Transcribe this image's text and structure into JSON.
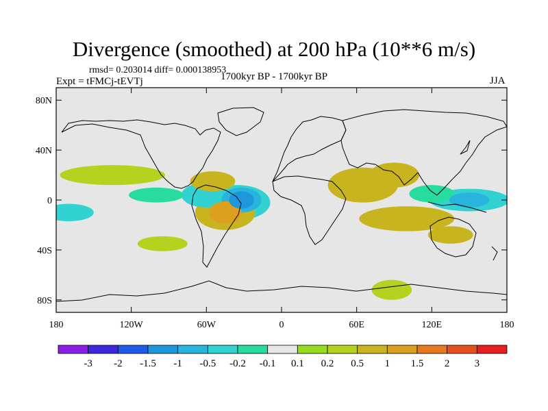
{
  "title": "Divergence (smoothed) at 200 hPa (10**6 m/s)",
  "stats_line": "rmsd= 0.203014 diff= 0.000138953",
  "experiment_label": "Expt = tFMCj-tEVTj",
  "period_label": "1700kyr BP - 1700kyr BP",
  "season_label": "JJA",
  "y_ticks": [
    {
      "label": "80N",
      "lat": 80
    },
    {
      "label": "40N",
      "lat": 40
    },
    {
      "label": "0",
      "lat": 0
    },
    {
      "label": "40S",
      "lat": -40
    },
    {
      "label": "80S",
      "lat": -80
    }
  ],
  "x_ticks": [
    {
      "label": "180",
      "lon": -180
    },
    {
      "label": "120W",
      "lon": -120
    },
    {
      "label": "60W",
      "lon": -60
    },
    {
      "label": "0",
      "lon": 0
    },
    {
      "label": "60E",
      "lon": 60
    },
    {
      "label": "120E",
      "lon": 120
    },
    {
      "label": "180",
      "lon": 180
    }
  ],
  "colorbar": {
    "colors": [
      "#8c1ee6",
      "#3c28dc",
      "#1e5ae6",
      "#1e96dc",
      "#28b4dc",
      "#32d2d2",
      "#28dca0",
      "#e6e6e6",
      "#96dc1e",
      "#b4d21e",
      "#c8b41e",
      "#dca01e",
      "#e6781e",
      "#e6501e",
      "#e61e1e"
    ],
    "labels": [
      "-3",
      "-2",
      "-1.5",
      "-1",
      "-0.5",
      "-0.2",
      "-0.1",
      "0.1",
      "0.2",
      "0.5",
      "1",
      "1.5",
      "2",
      "3"
    ]
  },
  "map_colors": {
    "background": "#e6e6e6",
    "coast": "#000000"
  },
  "chart_data": {
    "type": "heatmap",
    "title": "Divergence (smoothed) at 200 hPa (10**6 m/s)",
    "subtitle": "1700kyr BP - 1700kyr BP",
    "season": "JJA",
    "xlim": [
      -180,
      180
    ],
    "ylim": [
      -90,
      90
    ],
    "levels": [
      -3,
      -2,
      -1.5,
      -1,
      -0.5,
      -0.2,
      -0.1,
      0.1,
      0.2,
      0.5,
      1,
      1.5,
      2,
      3
    ],
    "features": [
      {
        "lon": -32,
        "lat": 0,
        "value": -1.5,
        "rx": 10,
        "ry": 7
      },
      {
        "lon": -32,
        "lat": 0,
        "value": -1,
        "rx": 16,
        "ry": 10
      },
      {
        "lon": -35,
        "lat": -2,
        "value": -0.5,
        "rx": 26,
        "ry": 14
      },
      {
        "lon": -60,
        "lat": 4,
        "value": -0.5,
        "rx": 20,
        "ry": 10
      },
      {
        "lon": -100,
        "lat": 4,
        "value": -0.2,
        "rx": 22,
        "ry": 6
      },
      {
        "lon": 150,
        "lat": 0,
        "value": -1,
        "rx": 16,
        "ry": 6
      },
      {
        "lon": 150,
        "lat": 0,
        "value": -0.5,
        "rx": 32,
        "ry": 9
      },
      {
        "lon": 120,
        "lat": 5,
        "value": -0.2,
        "rx": 18,
        "ry": 7
      },
      {
        "lon": -170,
        "lat": -10,
        "value": -0.5,
        "rx": 20,
        "ry": 7
      },
      {
        "lon": 22,
        "lat": 60,
        "value": -0.1,
        "rx": 12,
        "ry": 6
      },
      {
        "lon": -45,
        "lat": -10,
        "value": 1,
        "rx": 13,
        "ry": 9
      },
      {
        "lon": -45,
        "lat": -10,
        "value": 0.5,
        "rx": 24,
        "ry": 14
      },
      {
        "lon": -55,
        "lat": 15,
        "value": 0.5,
        "rx": 18,
        "ry": 8
      },
      {
        "lon": 65,
        "lat": 12,
        "value": 0.5,
        "rx": 28,
        "ry": 14
      },
      {
        "lon": 90,
        "lat": 20,
        "value": 0.5,
        "rx": 20,
        "ry": 10
      },
      {
        "lon": 100,
        "lat": -15,
        "value": 0.5,
        "rx": 38,
        "ry": 10
      },
      {
        "lon": 135,
        "lat": -28,
        "value": 0.5,
        "rx": 18,
        "ry": 7
      },
      {
        "lon": 88,
        "lat": -72,
        "value": 0.2,
        "rx": 16,
        "ry": 8
      },
      {
        "lon": -135,
        "lat": 20,
        "value": 0.2,
        "rx": 42,
        "ry": 8
      },
      {
        "lon": -95,
        "lat": -35,
        "value": 0.2,
        "rx": 20,
        "ry": 6
      }
    ]
  }
}
